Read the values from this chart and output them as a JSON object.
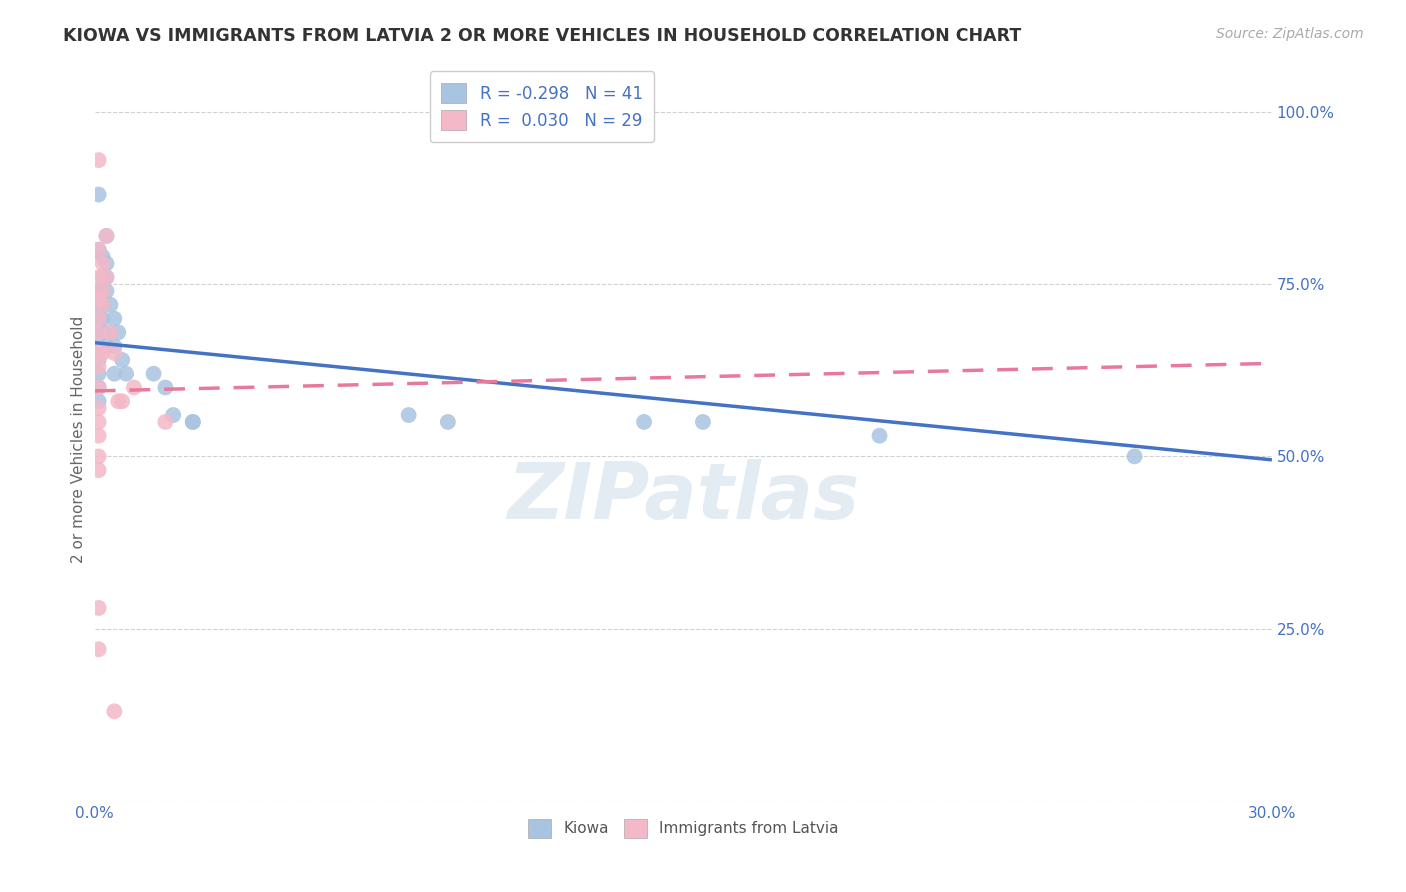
{
  "title": "KIOWA VS IMMIGRANTS FROM LATVIA 2 OR MORE VEHICLES IN HOUSEHOLD CORRELATION CHART",
  "source": "Source: ZipAtlas.com",
  "ylabel": "2 or more Vehicles in Household",
  "xlim": [
    0.0,
    0.3
  ],
  "ylim": [
    0.0,
    1.05
  ],
  "legend_entries": [
    {
      "label": "R = -0.298   N = 41",
      "color": "#a8c4e0"
    },
    {
      "label": "R =  0.030   N = 29",
      "color": "#f4b8c8"
    }
  ],
  "kiowa_scatter": [
    [
      0.001,
      0.88
    ],
    [
      0.001,
      0.8
    ],
    [
      0.001,
      0.74
    ],
    [
      0.001,
      0.72
    ],
    [
      0.001,
      0.7
    ],
    [
      0.001,
      0.68
    ],
    [
      0.001,
      0.66
    ],
    [
      0.001,
      0.64
    ],
    [
      0.001,
      0.62
    ],
    [
      0.001,
      0.6
    ],
    [
      0.001,
      0.58
    ],
    [
      0.002,
      0.79
    ],
    [
      0.002,
      0.76
    ],
    [
      0.002,
      0.74
    ],
    [
      0.002,
      0.72
    ],
    [
      0.002,
      0.7
    ],
    [
      0.002,
      0.68
    ],
    [
      0.003,
      0.82
    ],
    [
      0.003,
      0.78
    ],
    [
      0.003,
      0.76
    ],
    [
      0.003,
      0.74
    ],
    [
      0.003,
      0.66
    ],
    [
      0.004,
      0.72
    ],
    [
      0.004,
      0.68
    ],
    [
      0.005,
      0.7
    ],
    [
      0.005,
      0.66
    ],
    [
      0.005,
      0.62
    ],
    [
      0.006,
      0.68
    ],
    [
      0.007,
      0.64
    ],
    [
      0.008,
      0.62
    ],
    [
      0.015,
      0.62
    ],
    [
      0.018,
      0.6
    ],
    [
      0.02,
      0.56
    ],
    [
      0.025,
      0.55
    ],
    [
      0.025,
      0.55
    ],
    [
      0.08,
      0.56
    ],
    [
      0.09,
      0.55
    ],
    [
      0.14,
      0.55
    ],
    [
      0.155,
      0.55
    ],
    [
      0.2,
      0.53
    ],
    [
      0.265,
      0.5
    ]
  ],
  "latvia_scatter": [
    [
      0.001,
      0.93
    ],
    [
      0.001,
      0.8
    ],
    [
      0.001,
      0.76
    ],
    [
      0.001,
      0.73
    ],
    [
      0.001,
      0.7
    ],
    [
      0.001,
      0.68
    ],
    [
      0.001,
      0.65
    ],
    [
      0.001,
      0.63
    ],
    [
      0.001,
      0.6
    ],
    [
      0.001,
      0.57
    ],
    [
      0.001,
      0.55
    ],
    [
      0.001,
      0.53
    ],
    [
      0.001,
      0.5
    ],
    [
      0.001,
      0.48
    ],
    [
      0.001,
      0.28
    ],
    [
      0.001,
      0.22
    ],
    [
      0.002,
      0.78
    ],
    [
      0.002,
      0.74
    ],
    [
      0.002,
      0.72
    ],
    [
      0.002,
      0.65
    ],
    [
      0.003,
      0.82
    ],
    [
      0.003,
      0.76
    ],
    [
      0.004,
      0.68
    ],
    [
      0.005,
      0.65
    ],
    [
      0.006,
      0.58
    ],
    [
      0.007,
      0.58
    ],
    [
      0.01,
      0.6
    ],
    [
      0.018,
      0.55
    ],
    [
      0.005,
      0.13
    ]
  ],
  "kiowa_line": [
    0.0,
    0.665,
    0.3,
    0.495
  ],
  "latvia_line": [
    0.0,
    0.595,
    0.3,
    0.635
  ],
  "kiowa_line_color": "#4472c4",
  "latvia_line_color": "#e8799a",
  "kiowa_scatter_color": "#a8c4e0",
  "latvia_scatter_color": "#f4b8c8",
  "grid_color": "#cccccc",
  "watermark": "ZIPatlas",
  "background_color": "#ffffff"
}
